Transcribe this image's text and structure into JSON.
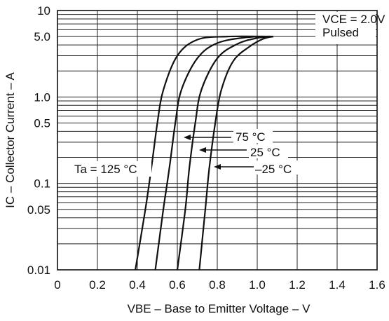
{
  "chart_data": {
    "type": "line",
    "xlabel": "VBE – Base to Emitter Voltage – V",
    "ylabel": "IC – Collector Current – A",
    "xlim": [
      0,
      1.6
    ],
    "ylim": [
      0.01,
      10
    ],
    "yscale": "log",
    "grid": true,
    "x_ticks": [
      "0",
      "0.2",
      "0.4",
      "0.6",
      "0.8",
      "1.0",
      "1.2",
      "1.4",
      "1.6"
    ],
    "y_ticks": [
      {
        "value": 0.01,
        "label": "0.01"
      },
      {
        "value": 0.05,
        "label": "0.05"
      },
      {
        "value": 0.1,
        "label": "0.1"
      },
      {
        "value": 0.5,
        "label": "0.5"
      },
      {
        "value": 1,
        "label": "1.0"
      },
      {
        "value": 5,
        "label": "5.0"
      },
      {
        "value": 10,
        "label": "10"
      }
    ],
    "conditions": {
      "vce_label": "VCE = 2.0V",
      "mode_label": "Pulsed"
    },
    "series": [
      {
        "name": "Ta = 125 °C",
        "points": [
          [
            0.39,
            0.01
          ],
          [
            0.44,
            0.05
          ],
          [
            0.47,
            0.15
          ],
          [
            0.5,
            0.5
          ],
          [
            0.53,
            1.2
          ],
          [
            0.6,
            3.0
          ],
          [
            0.7,
            4.6
          ],
          [
            0.85,
            5.0
          ],
          [
            1.08,
            5.0
          ]
        ]
      },
      {
        "name": "75 °C",
        "points": [
          [
            0.49,
            0.01
          ],
          [
            0.53,
            0.05
          ],
          [
            0.56,
            0.15
          ],
          [
            0.59,
            0.5
          ],
          [
            0.62,
            1.2
          ],
          [
            0.7,
            2.8
          ],
          [
            0.8,
            4.2
          ],
          [
            0.95,
            4.9
          ],
          [
            1.08,
            5.0
          ]
        ]
      },
      {
        "name": "25 °C",
        "points": [
          [
            0.6,
            0.01
          ],
          [
            0.64,
            0.05
          ],
          [
            0.66,
            0.15
          ],
          [
            0.69,
            0.5
          ],
          [
            0.72,
            1.2
          ],
          [
            0.8,
            2.8
          ],
          [
            0.9,
            4.1
          ],
          [
            1.0,
            4.8
          ],
          [
            1.08,
            5.0
          ]
        ]
      },
      {
        "name": "–25 °C",
        "points": [
          [
            0.71,
            0.01
          ],
          [
            0.74,
            0.05
          ],
          [
            0.76,
            0.15
          ],
          [
            0.79,
            0.5
          ],
          [
            0.82,
            1.2
          ],
          [
            0.88,
            2.6
          ],
          [
            0.96,
            3.8
          ],
          [
            1.03,
            4.7
          ],
          [
            1.08,
            5.0
          ]
        ]
      }
    ],
    "annotations": {
      "ta125": "Ta = 125 °C",
      "t75": "75 °C",
      "t25": "25 °C",
      "tm25": "–25 °C"
    }
  }
}
